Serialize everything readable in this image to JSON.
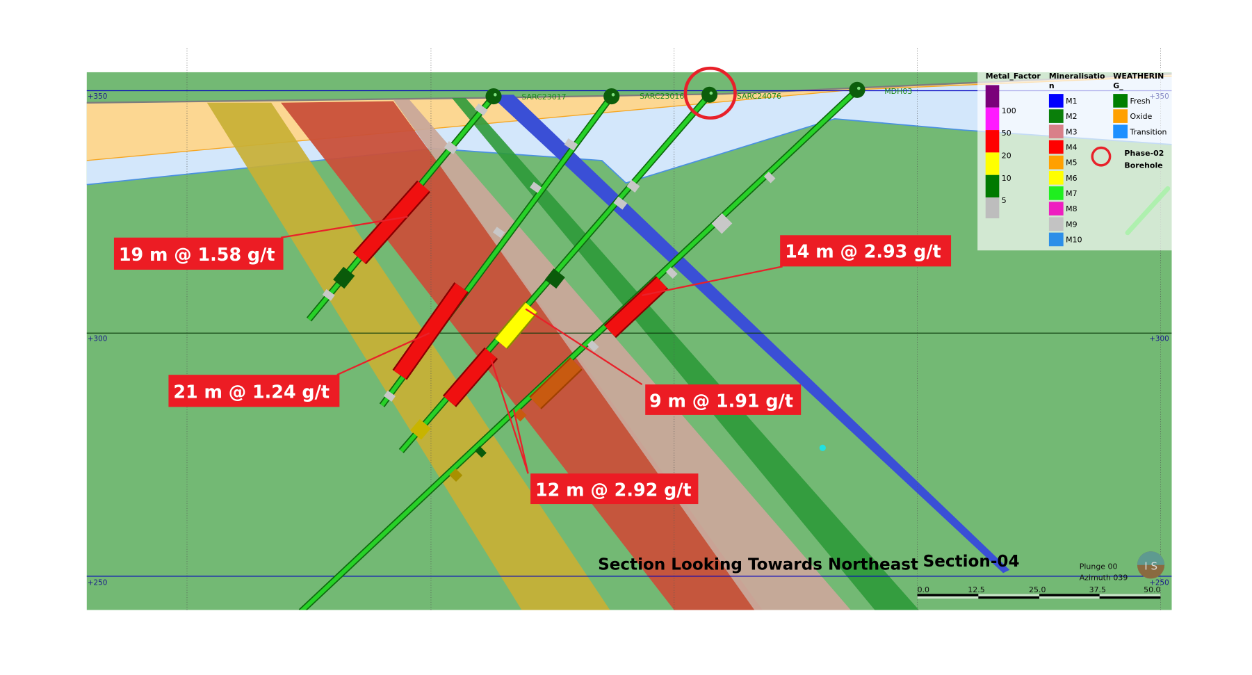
{
  "section": {
    "title": "Section Looking Towards Northeast",
    "name": "Section-04",
    "plunge": "Plunge 00",
    "azimuth": "Azimuth 039"
  },
  "elevations": {
    "top": "+350",
    "mid": "+300",
    "bottom": "+250"
  },
  "scale_bar": {
    "ticks": [
      "0.0",
      "12.5",
      "25.0",
      "37.5",
      "50.0"
    ]
  },
  "drillholes": [
    {
      "id": "SARC23017"
    },
    {
      "id": "SARC23016"
    },
    {
      "id": "SARC24076",
      "phase": "Phase-02"
    },
    {
      "id": "MDH03"
    }
  ],
  "intercepts": [
    {
      "label": "19 m @ 1.58 g/t"
    },
    {
      "label": "21 m @ 1.24 g/t"
    },
    {
      "label": "9 m @ 1.91 g/t"
    },
    {
      "label": "12 m @ 2.92 g/t"
    },
    {
      "label": "14 m @ 2.93 g/t"
    }
  ],
  "legend": {
    "metal_factor": {
      "title": "Metal_Factor",
      "colors": [
        "#7a007a",
        "#ff1aff",
        "#ff0000",
        "#ffff00",
        "#007a00",
        "#bdbdbd"
      ],
      "labels": [
        "100",
        "50",
        "20",
        "10",
        "5"
      ]
    },
    "mineralisation": {
      "title_line1": "Mineralisatio",
      "title_line2": "n",
      "items": [
        {
          "label": "M1",
          "color": "#0000ff"
        },
        {
          "label": "M2",
          "color": "#0a7f0a"
        },
        {
          "label": "M3",
          "color": "#d98089"
        },
        {
          "label": "M4",
          "color": "#ff0000"
        },
        {
          "label": "M5",
          "color": "#ffa000"
        },
        {
          "label": "M6",
          "color": "#ffff00"
        },
        {
          "label": "M7",
          "color": "#1fef1f"
        },
        {
          "label": "M8",
          "color": "#ee1ec0"
        },
        {
          "label": "M9",
          "color": "#c3c3c3"
        },
        {
          "label": "M10",
          "color": "#2c8fe8"
        }
      ]
    },
    "weathering": {
      "title_line1": "WEATHERIN",
      "title_line2": "G_",
      "items": [
        {
          "label": "Fresh",
          "color": "#007f00"
        },
        {
          "label": "Oxide",
          "color": "#ffa000"
        },
        {
          "label": "Transition",
          "color": "#1e90ff"
        }
      ]
    },
    "phase_marker": {
      "line1": "Phase-02",
      "line2": "Borehole",
      "color": "#e8212a"
    }
  }
}
